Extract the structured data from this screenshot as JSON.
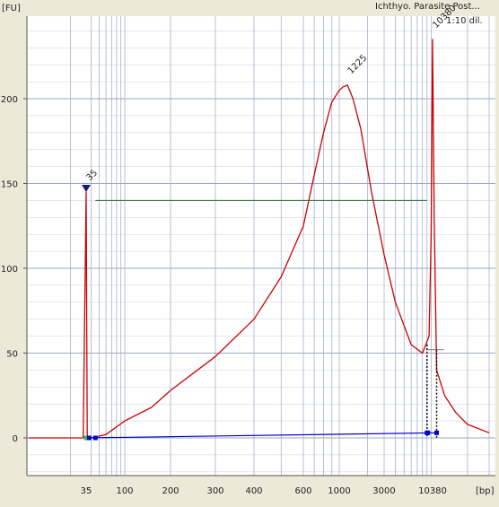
{
  "header": {
    "sample_name": "Ichthyo. Parasite Post...",
    "dilution": "1:10 dil."
  },
  "chart_data": {
    "type": "line",
    "title": "",
    "ylabel": "[FU]",
    "xlabel": "[bp]",
    "ylim": [
      -20,
      250
    ],
    "yticks": [
      0,
      50,
      100,
      150,
      200
    ],
    "xticks": [
      "35",
      "100",
      "200",
      "300",
      "400",
      "600",
      "1000",
      "3000",
      "10380"
    ],
    "grid": true,
    "series": [
      {
        "color": "#cc0000",
        "x": [
          20,
          34,
          35,
          36,
          40,
          60,
          100,
          150,
          200,
          300,
          400,
          500,
          600,
          700,
          800,
          900,
          1000,
          1100,
          1225,
          1400,
          1700,
          2200,
          3000,
          4000,
          6000,
          8000,
          9500,
          10000,
          10380,
          10700,
          11200,
          13000,
          16000,
          20000,
          30000
        ],
        "values": [
          0,
          0,
          145,
          0,
          0,
          2,
          10,
          18,
          28,
          48,
          70,
          95,
          125,
          155,
          180,
          198,
          205,
          207,
          208,
          200,
          182,
          145,
          108,
          80,
          55,
          50,
          60,
          120,
          235,
          130,
          40,
          25,
          15,
          8,
          3
        ]
      }
    ],
    "markers": [
      {
        "label": "35",
        "x": 35,
        "y": 145,
        "color": "#1a9a1a"
      },
      {
        "label": "1225",
        "x": 1225,
        "y": 208,
        "color": "#111111"
      },
      {
        "label": "10380",
        "x": 10380,
        "y": 235,
        "color": "#8a2be2"
      }
    ],
    "threshold_line": {
      "y": 140,
      "x_start": 45,
      "x_end": 9000,
      "color": "#1a6e2a"
    },
    "baseline": {
      "x_start": 35,
      "x_end": 11200,
      "y_start": 0,
      "y_end": 3,
      "color": "#0000cc"
    },
    "baseline_points": [
      {
        "x": 35,
        "y": 0,
        "color": "#22cc22"
      },
      {
        "x": 38,
        "y": 0,
        "color": "#0000cc"
      },
      {
        "x": 45,
        "y": 0,
        "color": "#0000cc"
      },
      {
        "x": 9000,
        "y": 3,
        "color": "#0000cc"
      },
      {
        "x": 9200,
        "y": 3,
        "color": "#0000cc"
      },
      {
        "x": 11200,
        "y": 3,
        "color": "#0000cc"
      }
    ],
    "integration_bars": [
      {
        "x": 9000,
        "y_top": 55
      },
      {
        "x": 11200,
        "y_top": 52
      }
    ],
    "colors": {
      "trace": "#cc0000",
      "grid": "#9aa8c4",
      "background": "#ffffff",
      "frame": "#ece9d8"
    }
  }
}
